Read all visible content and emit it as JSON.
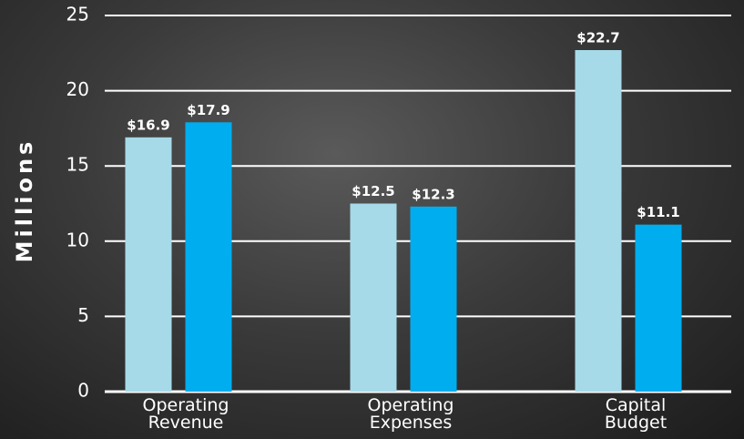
{
  "chart_data": {
    "type": "bar",
    "categories": [
      "Operating\nRevenue",
      "Operating\nExpenses",
      "Capital\nBudget"
    ],
    "series": [
      {
        "color": "#a6dae8",
        "values": [
          16.9,
          12.5,
          22.7
        ],
        "value_labels": [
          "$16.9",
          "$12.5",
          "$22.7"
        ]
      },
      {
        "color": "#00adef",
        "values": [
          17.9,
          12.3,
          11.1
        ],
        "value_labels": [
          "$17.9",
          "$12.3",
          "$11.1"
        ]
      }
    ],
    "ylabel": "Millions",
    "ylim": [
      0,
      25
    ],
    "yticks": [
      0,
      5,
      10,
      15,
      20,
      25
    ],
    "grid": true
  }
}
